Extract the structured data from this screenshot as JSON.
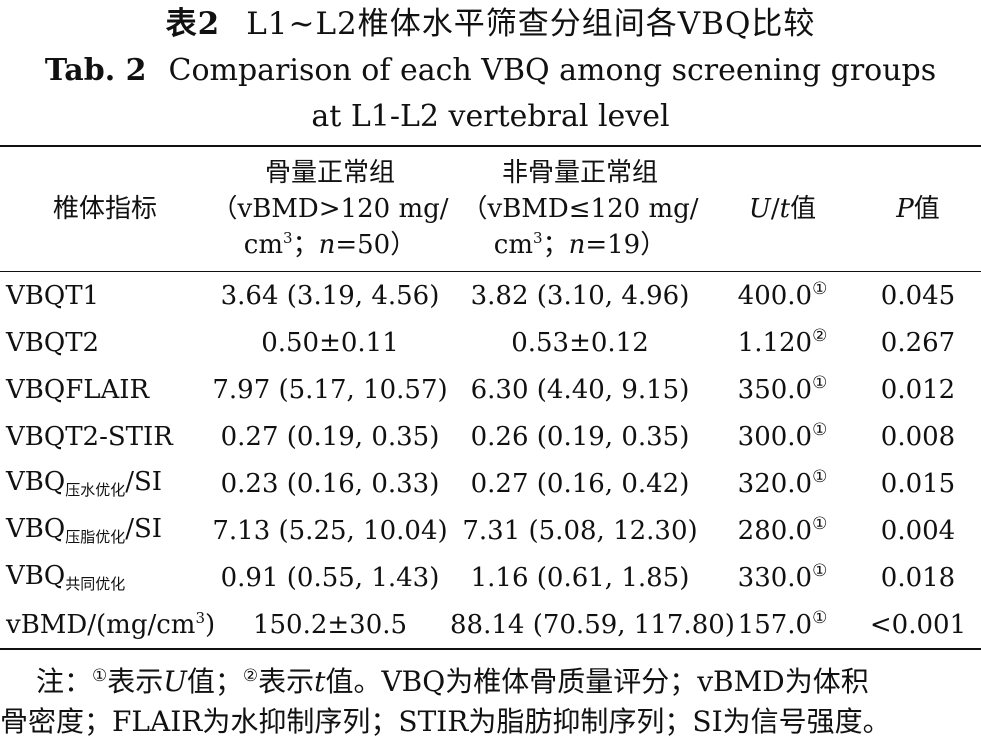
{
  "title": {
    "cn_label": "表2",
    "cn_text": "L1~L2椎体水平筛查分组间各VBQ比较",
    "en_label": "Tab. 2",
    "en_text_1": "Comparison of each VBQ among screening groups",
    "en_text_2": "at L1-L2 vertebral level"
  },
  "table": {
    "headers": {
      "col0": "椎体指标",
      "col1_line1": "骨量正常组",
      "col1_line2": "（vBMD>120 mg/",
      "col1_line3_a": "cm",
      "col1_line3_sup": "3",
      "col1_line3_b": "；",
      "col1_line3_n": "n",
      "col1_line3_c": "=50）",
      "col2_line1": "非骨量正常组",
      "col2_line2": "（vBMD≤120 mg/",
      "col2_line3_a": "cm",
      "col2_line3_sup": "3",
      "col2_line3_b": "；",
      "col2_line3_n": "n",
      "col2_line3_c": "=19）",
      "col3_u": "U",
      "col3_slash": "/",
      "col3_t": "t",
      "col3_rest": "值",
      "col4_p": "P",
      "col4_rest": "值"
    },
    "rows": [
      {
        "main": "VBQT1",
        "sub": "",
        "tail": "",
        "normal": "3.64 (3.19, 4.56)",
        "abnormal": "3.82 (3.10, 4.96)",
        "stat": "400.0",
        "mark": "①",
        "p": "0.045"
      },
      {
        "main": "VBQT2",
        "sub": "",
        "tail": "",
        "normal": "0.50±0.11",
        "abnormal": "0.53±0.12",
        "stat": "1.120",
        "mark": "②",
        "p": "0.267"
      },
      {
        "main": "VBQFLAIR",
        "sub": "",
        "tail": "",
        "normal": "7.97 (5.17, 10.57)",
        "abnormal": "6.30 (4.40, 9.15)",
        "stat": "350.0",
        "mark": "①",
        "p": "0.012"
      },
      {
        "main": "VBQT2-STIR",
        "sub": "",
        "tail": "",
        "normal": "0.27 (0.19, 0.35)",
        "abnormal": "0.26 (0.19, 0.35)",
        "stat": "300.0",
        "mark": "①",
        "p": "0.008"
      },
      {
        "main": "VBQ",
        "sub": "压水优化",
        "tail": "/SI",
        "normal": "0.23 (0.16, 0.33)",
        "abnormal": "0.27 (0.16, 0.42)",
        "stat": "320.0",
        "mark": "①",
        "p": "0.015"
      },
      {
        "main": "VBQ",
        "sub": "压脂优化",
        "tail": "/SI",
        "normal": "7.13 (5.25, 10.04)",
        "abnormal": "7.31 (5.08, 12.30)",
        "stat": "280.0",
        "mark": "①",
        "p": "0.004"
      },
      {
        "main": "VBQ",
        "sub": "共同优化",
        "tail": "",
        "normal": "0.91 (0.55, 1.43)",
        "abnormal": "1.16 (0.61, 1.85)",
        "stat": "330.0",
        "mark": "①",
        "p": "0.018"
      },
      {
        "main": "vBMD/(mg/cm",
        "sub": "",
        "tail": "3)",
        "normal": "150.2±30.5",
        "abnormal": "88.14 (70.59, 117.80)",
        "stat": "157.0",
        "mark": "①",
        "p": "<0.001"
      }
    ]
  },
  "note": {
    "prefix": "注：",
    "m1": "①",
    "t1": "表示",
    "u": "U",
    "t2": "值；",
    "m2": "②",
    "t3": "表示",
    "t": "t",
    "t4": "值。VBQ为椎体骨质量评分；vBMD为体积",
    "line2": "骨密度；FLAIR为水抑制序列；STIR为脂肪抑制序列；SI为信号强度。"
  }
}
